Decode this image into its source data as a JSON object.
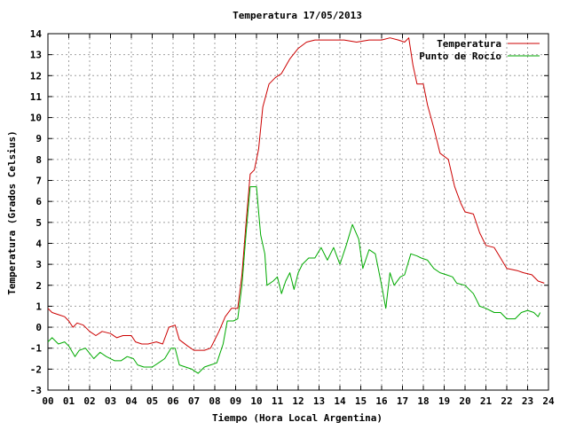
{
  "chart_data": {
    "type": "line",
    "title": "Temperatura 17/05/2013",
    "xlabel": "Tiempo (Hora Local Argentina)",
    "ylabel": "Temperatura (Grados Celsius)",
    "xlim": [
      0,
      24
    ],
    "ylim": [
      -3,
      14
    ],
    "xticks": [
      0,
      1,
      2,
      3,
      4,
      5,
      6,
      7,
      8,
      9,
      10,
      11,
      12,
      13,
      14,
      15,
      16,
      17,
      18,
      19,
      20,
      21,
      22,
      23,
      24
    ],
    "xtick_labels": [
      "00",
      "01",
      "02",
      "03",
      "04",
      "05",
      "06",
      "07",
      "08",
      "09",
      "10",
      "11",
      "12",
      "13",
      "14",
      "15",
      "16",
      "17",
      "18",
      "19",
      "20",
      "21",
      "22",
      "23",
      "24"
    ],
    "yticks": [
      -3,
      -2,
      -1,
      0,
      1,
      2,
      3,
      4,
      5,
      6,
      7,
      8,
      9,
      10,
      11,
      12,
      13,
      14
    ],
    "grid": true,
    "legend_position": "top-right",
    "series": [
      {
        "name": "Temperatura",
        "color": "#cc0000",
        "points": [
          [
            0.0,
            0.9
          ],
          [
            0.2,
            0.7
          ],
          [
            0.5,
            0.6
          ],
          [
            0.8,
            0.5
          ],
          [
            1.0,
            0.3
          ],
          [
            1.2,
            0.0
          ],
          [
            1.4,
            0.2
          ],
          [
            1.7,
            0.1
          ],
          [
            2.0,
            -0.2
          ],
          [
            2.3,
            -0.4
          ],
          [
            2.6,
            -0.2
          ],
          [
            3.0,
            -0.3
          ],
          [
            3.3,
            -0.5
          ],
          [
            3.6,
            -0.4
          ],
          [
            4.0,
            -0.4
          ],
          [
            4.2,
            -0.7
          ],
          [
            4.5,
            -0.8
          ],
          [
            4.8,
            -0.8
          ],
          [
            5.2,
            -0.7
          ],
          [
            5.5,
            -0.8
          ],
          [
            5.8,
            0.0
          ],
          [
            6.1,
            0.1
          ],
          [
            6.3,
            -0.6
          ],
          [
            6.7,
            -0.9
          ],
          [
            7.0,
            -1.1
          ],
          [
            7.5,
            -1.1
          ],
          [
            7.8,
            -1.0
          ],
          [
            8.2,
            -0.2
          ],
          [
            8.5,
            0.5
          ],
          [
            8.8,
            0.9
          ],
          [
            9.1,
            0.9
          ],
          [
            9.3,
            2.5
          ],
          [
            9.5,
            5.0
          ],
          [
            9.7,
            7.3
          ],
          [
            9.9,
            7.5
          ],
          [
            10.1,
            8.5
          ],
          [
            10.3,
            10.5
          ],
          [
            10.6,
            11.6
          ],
          [
            10.9,
            11.9
          ],
          [
            11.2,
            12.1
          ],
          [
            11.6,
            12.8
          ],
          [
            12.0,
            13.3
          ],
          [
            12.4,
            13.6
          ],
          [
            12.8,
            13.7
          ],
          [
            13.5,
            13.7
          ],
          [
            14.2,
            13.7
          ],
          [
            14.8,
            13.6
          ],
          [
            15.4,
            13.7
          ],
          [
            16.0,
            13.7
          ],
          [
            16.4,
            13.8
          ],
          [
            16.8,
            13.7
          ],
          [
            17.1,
            13.6
          ],
          [
            17.3,
            13.8
          ],
          [
            17.5,
            12.5
          ],
          [
            17.7,
            11.6
          ],
          [
            18.0,
            11.6
          ],
          [
            18.2,
            10.6
          ],
          [
            18.5,
            9.5
          ],
          [
            18.8,
            8.3
          ],
          [
            19.2,
            8.0
          ],
          [
            19.5,
            6.7
          ],
          [
            19.8,
            5.9
          ],
          [
            20.0,
            5.5
          ],
          [
            20.4,
            5.4
          ],
          [
            20.7,
            4.5
          ],
          [
            21.0,
            3.9
          ],
          [
            21.4,
            3.8
          ],
          [
            21.7,
            3.3
          ],
          [
            22.0,
            2.8
          ],
          [
            22.5,
            2.7
          ],
          [
            22.8,
            2.6
          ],
          [
            23.2,
            2.5
          ],
          [
            23.5,
            2.2
          ],
          [
            23.8,
            2.1
          ]
        ]
      },
      {
        "name": "Punto de Rocío",
        "color": "#00aa00",
        "points": [
          [
            0.0,
            -0.7
          ],
          [
            0.2,
            -0.5
          ],
          [
            0.5,
            -0.8
          ],
          [
            0.8,
            -0.7
          ],
          [
            1.0,
            -0.9
          ],
          [
            1.3,
            -1.4
          ],
          [
            1.5,
            -1.1
          ],
          [
            1.8,
            -1.0
          ],
          [
            2.2,
            -1.5
          ],
          [
            2.5,
            -1.2
          ],
          [
            2.8,
            -1.4
          ],
          [
            3.2,
            -1.6
          ],
          [
            3.5,
            -1.6
          ],
          [
            3.8,
            -1.4
          ],
          [
            4.1,
            -1.5
          ],
          [
            4.3,
            -1.8
          ],
          [
            4.6,
            -1.9
          ],
          [
            5.0,
            -1.9
          ],
          [
            5.3,
            -1.7
          ],
          [
            5.6,
            -1.5
          ],
          [
            5.9,
            -1.0
          ],
          [
            6.1,
            -1.0
          ],
          [
            6.3,
            -1.8
          ],
          [
            6.6,
            -1.9
          ],
          [
            6.9,
            -2.0
          ],
          [
            7.2,
            -2.2
          ],
          [
            7.5,
            -1.9
          ],
          [
            7.8,
            -1.8
          ],
          [
            8.1,
            -1.7
          ],
          [
            8.4,
            -0.8
          ],
          [
            8.6,
            0.3
          ],
          [
            8.9,
            0.3
          ],
          [
            9.1,
            0.4
          ],
          [
            9.3,
            2.0
          ],
          [
            9.5,
            4.5
          ],
          [
            9.7,
            6.7
          ],
          [
            10.0,
            6.7
          ],
          [
            10.1,
            5.5
          ],
          [
            10.2,
            4.4
          ],
          [
            10.4,
            3.5
          ],
          [
            10.5,
            2.0
          ],
          [
            10.8,
            2.2
          ],
          [
            11.0,
            2.4
          ],
          [
            11.2,
            1.6
          ],
          [
            11.4,
            2.2
          ],
          [
            11.6,
            2.6
          ],
          [
            11.8,
            1.8
          ],
          [
            12.0,
            2.6
          ],
          [
            12.2,
            3.0
          ],
          [
            12.5,
            3.3
          ],
          [
            12.8,
            3.3
          ],
          [
            13.1,
            3.8
          ],
          [
            13.4,
            3.2
          ],
          [
            13.7,
            3.8
          ],
          [
            14.0,
            3.0
          ],
          [
            14.3,
            3.9
          ],
          [
            14.6,
            4.9
          ],
          [
            14.9,
            4.2
          ],
          [
            15.1,
            2.8
          ],
          [
            15.4,
            3.7
          ],
          [
            15.7,
            3.5
          ],
          [
            16.0,
            2.0
          ],
          [
            16.2,
            0.9
          ],
          [
            16.4,
            2.6
          ],
          [
            16.6,
            2.0
          ],
          [
            16.9,
            2.4
          ],
          [
            17.1,
            2.5
          ],
          [
            17.4,
            3.5
          ],
          [
            17.7,
            3.4
          ],
          [
            17.9,
            3.3
          ],
          [
            18.2,
            3.2
          ],
          [
            18.5,
            2.8
          ],
          [
            18.8,
            2.6
          ],
          [
            19.1,
            2.5
          ],
          [
            19.4,
            2.4
          ],
          [
            19.6,
            2.1
          ],
          [
            20.0,
            2.0
          ],
          [
            20.4,
            1.6
          ],
          [
            20.7,
            1.0
          ],
          [
            21.0,
            0.9
          ],
          [
            21.4,
            0.7
          ],
          [
            21.7,
            0.7
          ],
          [
            22.0,
            0.4
          ],
          [
            22.4,
            0.4
          ],
          [
            22.7,
            0.7
          ],
          [
            23.0,
            0.8
          ],
          [
            23.3,
            0.7
          ],
          [
            23.5,
            0.5
          ],
          [
            23.6,
            0.7
          ]
        ]
      }
    ]
  }
}
